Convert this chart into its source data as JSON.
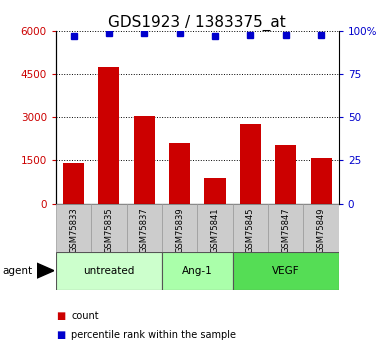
{
  "title": "GDS1923 / 1383375_at",
  "samples": [
    "GSM75833",
    "GSM75835",
    "GSM75837",
    "GSM75839",
    "GSM75841",
    "GSM75845",
    "GSM75847",
    "GSM75849"
  ],
  "counts": [
    1400,
    4750,
    3050,
    2100,
    900,
    2750,
    2050,
    1600
  ],
  "percentiles": [
    97,
    99,
    99,
    99,
    97,
    98,
    98,
    98
  ],
  "groups": [
    {
      "label": "untreated",
      "start": 0,
      "end": 3,
      "color": "#ccffcc"
    },
    {
      "label": "Ang-1",
      "start": 3,
      "end": 5,
      "color": "#aaffaa"
    },
    {
      "label": "VEGF",
      "start": 5,
      "end": 8,
      "color": "#55dd55"
    }
  ],
  "bar_color": "#cc0000",
  "dot_color": "#0000cc",
  "ylim_left": [
    0,
    6000
  ],
  "ylim_right": [
    0,
    100
  ],
  "yticks_left": [
    0,
    1500,
    3000,
    4500,
    6000
  ],
  "yticks_right": [
    0,
    25,
    50,
    75,
    100
  ],
  "ylabel_left_color": "#cc0000",
  "ylabel_right_color": "#0000cc",
  "grid_color": "#000000",
  "background_color": "#ffffff",
  "sample_box_color": "#cccccc",
  "agent_label": "agent",
  "legend_count_label": "count",
  "legend_pct_label": "percentile rank within the sample",
  "title_fontsize": 11
}
